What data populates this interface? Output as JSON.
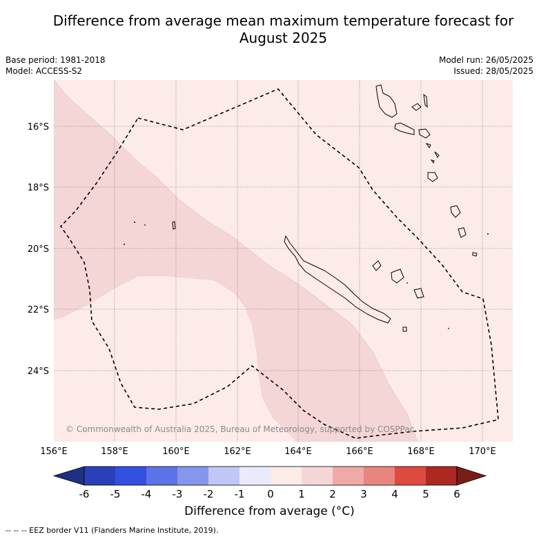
{
  "title_line1": "Difference from average mean maximum temperature forecast for",
  "title_line2": "August 2025",
  "meta": {
    "base_period": "Base period: 1981-2018",
    "model": "Model: ACCESS-S2",
    "model_run": "Model run: 26/05/2025",
    "issued": "Issued: 28/05/2025"
  },
  "map": {
    "lon_ticks": [
      "156°E",
      "158°E",
      "160°E",
      "162°E",
      "164°E",
      "166°E",
      "168°E",
      "170°E"
    ],
    "lat_ticks": [
      "16°S",
      "18°S",
      "20°S",
      "22°S",
      "24°S"
    ],
    "copyright": "© Commonwealth of Australia 2025, Bureau of Meteorology, supported by COSPPac",
    "colors": {
      "anomaly_0_1": "#fcebe9",
      "anomaly_1_2": "#f5d6d6",
      "eez": "#000000"
    }
  },
  "colorbar": {
    "labels": [
      "-6",
      "-5",
      "-4",
      "-3",
      "-2",
      "-1",
      "0",
      "1",
      "2",
      "3",
      "4",
      "5",
      "6"
    ],
    "colors": [
      "#1e2f86",
      "#2a3fb8",
      "#3350e0",
      "#5a73e6",
      "#8596ec",
      "#c0c7f4",
      "#e9ebfa",
      "#fdebe8",
      "#f5d6d6",
      "#efaaa6",
      "#e8857e",
      "#dd4a40",
      "#ae2822",
      "#7a1c17"
    ],
    "title": "Difference from average (°C)"
  },
  "footnote": "--  --  -- EEZ border V11 (Flanders Marine Institute, 2019)."
}
